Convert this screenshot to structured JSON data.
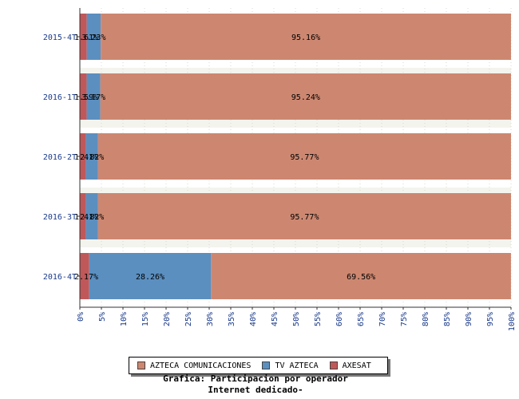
{
  "chart_data": {
    "type": "bar",
    "orientation": "horizontal",
    "stacked": true,
    "categories": [
      "2015-4T",
      "2016-1T",
      "2016-2T",
      "2016-3T",
      "2016-4T"
    ],
    "series": [
      {
        "name": "AXESAT",
        "color": "#c0585a",
        "values": [
          1.61,
          1.59,
          1.41,
          1.41,
          2.17
        ],
        "labels": [
          "1.61%",
          "1.59%",
          "1.41%",
          "1.41%",
          "2.17%"
        ]
      },
      {
        "name": "TV AZTECA",
        "color": "#5b8fc0",
        "values": [
          3.23,
          3.17,
          2.82,
          2.82,
          28.26
        ],
        "labels": [
          "3.23%",
          "3.17%",
          "2.82%",
          "2.82%",
          "28.26%"
        ]
      },
      {
        "name": "AZTECA COMUNICACIONES",
        "color": "#cd8770",
        "values": [
          95.16,
          95.24,
          95.77,
          95.77,
          69.56
        ],
        "labels": [
          "95.16%",
          "95.24%",
          "95.77%",
          "95.77%",
          "69.56%"
        ]
      }
    ],
    "xlim": [
      0,
      100
    ],
    "xticks": [
      "0%",
      "5%",
      "10%",
      "15%",
      "20%",
      "25%",
      "30%",
      "35%",
      "40%",
      "45%",
      "50%",
      "55%",
      "60%",
      "65%",
      "70%",
      "75%",
      "80%",
      "85%",
      "90%",
      "95%",
      "100%"
    ],
    "legend": [
      "AZTECA COMUNICACIONES",
      "TV AZTECA",
      "AXESAT"
    ],
    "legend_position": "bottom",
    "title_lines": [
      "Grafica: Participacion por operador",
      "Internet dedicado-"
    ]
  }
}
